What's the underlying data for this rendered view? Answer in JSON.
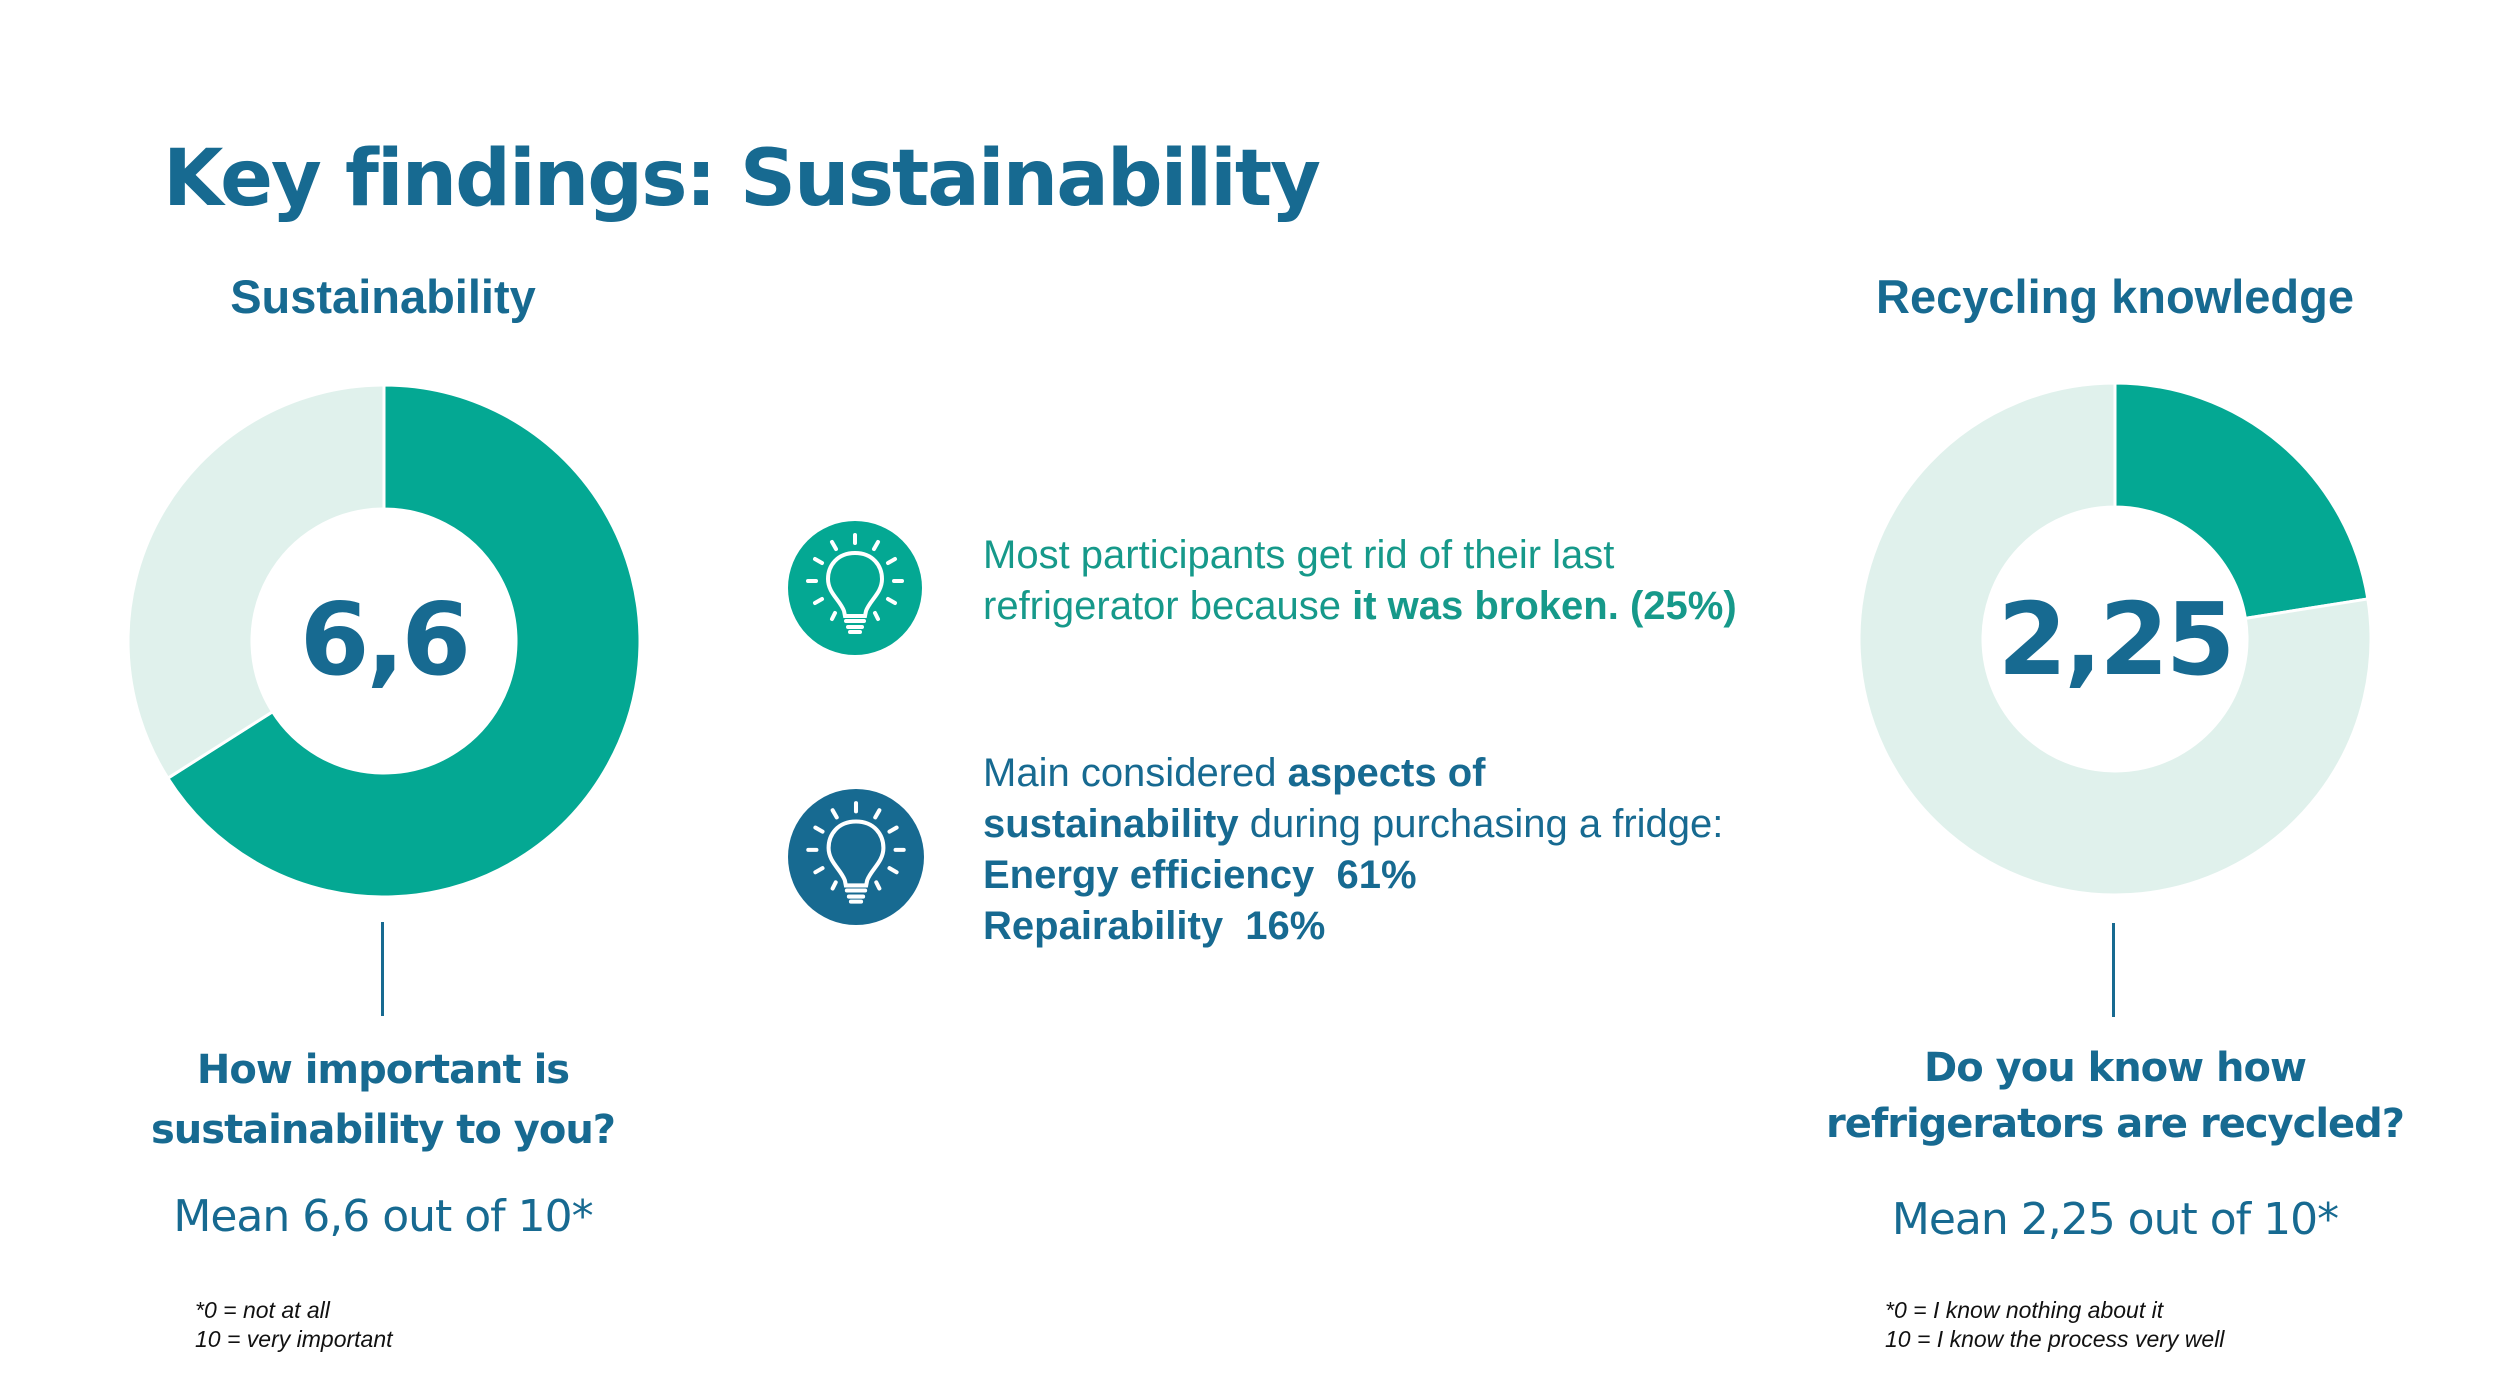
{
  "page": {
    "title": "Key findings: Sustainability"
  },
  "colors": {
    "primary_blue": "#176a91",
    "teal": "#04a893",
    "teal_light": "#e0f1ec",
    "footnote_text": "#111111"
  },
  "left_panel": {
    "title": "Sustainability",
    "value_label": "6,6",
    "question_line1": "How important is",
    "question_line2": "sustainability to you?",
    "mean_text": "Mean 6,6 out of 10*",
    "footnote_line1": "*0 = not at all",
    "footnote_line2": "10 = very important"
  },
  "right_panel": {
    "title": "Recycling knowledge",
    "value_label": "2,25",
    "question_line1": "Do you know how",
    "question_line2": "refrigerators are recycled?",
    "mean_text": "Mean 2,25 out of 10*",
    "footnote_line1": "*0 = I know nothing about it",
    "footnote_line2": "10 = I know the process very well"
  },
  "findings": [
    {
      "icon": "lightbulb-icon",
      "icon_color": "#04a893",
      "text_color": "#16998a",
      "line1": "Most participants get rid of their last",
      "line2_normal": "refrigerator because ",
      "line2_bold": "it was broken. (25%)"
    },
    {
      "icon": "lightbulb-icon",
      "icon_color": "#176a91",
      "text_color": "#176a91",
      "line1_normal": "Main considered ",
      "line1_bold": "aspects of",
      "line2_bold": "sustainability",
      "line2_normal": " during purchasing a fridge:",
      "line3": "Energy efficiency  61%",
      "line4": "Repairability  16%"
    }
  ],
  "chart_data": [
    {
      "type": "pie",
      "variant": "donut",
      "title": "Sustainability",
      "center_label": "6,6",
      "scale_max": 10,
      "value": 6.6,
      "slices": [
        {
          "name": "score",
          "value": 6.6,
          "color": "#04a893"
        },
        {
          "name": "remainder",
          "value": 3.4,
          "color": "#e0f1ec"
        }
      ],
      "start": "12 o'clock",
      "direction": "clockwise"
    },
    {
      "type": "pie",
      "variant": "donut",
      "title": "Recycling knowledge",
      "center_label": "2,25",
      "scale_max": 10,
      "value": 2.25,
      "slices": [
        {
          "name": "score",
          "value": 2.25,
          "color": "#04a893"
        },
        {
          "name": "remainder",
          "value": 7.75,
          "color": "#e0f1ec"
        }
      ],
      "start": "12 o'clock",
      "direction": "clockwise"
    }
  ]
}
